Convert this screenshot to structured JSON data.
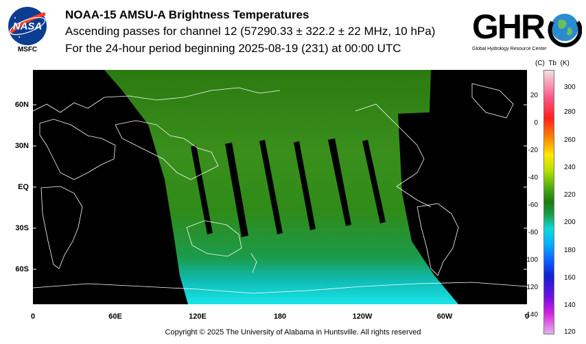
{
  "header": {
    "title": "NOAA-15 AMSU-A Brightness Temperatures",
    "subtitle": "Ascending passes for channel 12 (57290.33 ± 322.2 ± 22 MHz, 10 hPa)",
    "period": "For the 24-hour period beginning 2025-08-19 (231) at 00:00 UTC"
  },
  "logos": {
    "nasa": {
      "name": "NASA",
      "sub": "MSFC"
    },
    "ghrc": {
      "name": "GHRC",
      "sub": "Global Hydrology Resource Center"
    }
  },
  "map": {
    "lat_labels": [
      "60N",
      "30N",
      "EQ",
      "30S",
      "60S"
    ],
    "lon_labels": [
      "0",
      "60E",
      "120E",
      "180",
      "120W",
      "60W",
      "0"
    ],
    "no_data_color": "#000000",
    "coastline_color": "#ffffff"
  },
  "colorbar": {
    "unit_c": "(C)",
    "unit_tb": "Tb",
    "unit_k": "(K)",
    "celsius_ticks": [
      "20",
      "0",
      "-20",
      "-40",
      "-60",
      "-80",
      "-100",
      "-120",
      "-140"
    ],
    "kelvin_ticks": [
      "300",
      "280",
      "260",
      "240",
      "220",
      "200",
      "180",
      "160",
      "140",
      "120"
    ]
  },
  "footer": {
    "copyright": "Copyright © 2025 The University of Alabama in Huntsville.  All rights reserved"
  }
}
